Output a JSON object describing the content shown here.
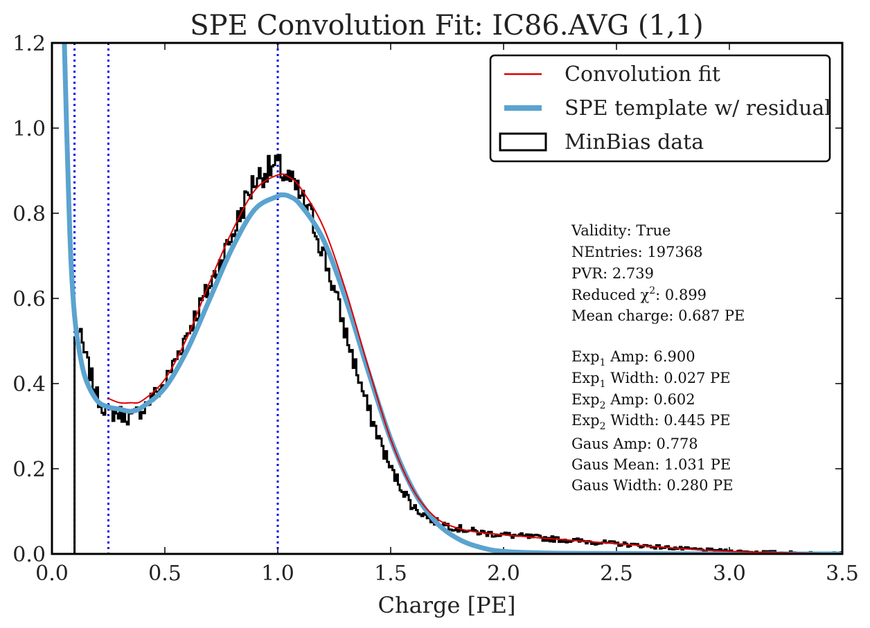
{
  "chart_data": {
    "type": "line",
    "title": "SPE Convolution Fit: IC86.AVG (1,1)",
    "xlabel": "Charge [PE]",
    "ylabel": "",
    "xlim": [
      0.0,
      3.5
    ],
    "ylim": [
      0.0,
      1.2
    ],
    "xticks": [
      0.0,
      0.5,
      1.0,
      1.5,
      2.0,
      2.5,
      3.0,
      3.5
    ],
    "xtick_labels": [
      "0.0",
      "0.5",
      "1.0",
      "1.5",
      "2.0",
      "2.5",
      "3.0",
      "3.5"
    ],
    "yticks": [
      0.0,
      0.2,
      0.4,
      0.6,
      0.8,
      1.0,
      1.2
    ],
    "ytick_labels": [
      "0.0",
      "0.2",
      "0.4",
      "0.6",
      "0.8",
      "1.0",
      "1.2"
    ],
    "vlines": [
      0.1,
      0.25,
      1.0
    ],
    "legend_position": "top-right",
    "series": [
      {
        "name": "MinBias data",
        "kind": "histogram",
        "color": "#000000",
        "x": [
          0.1,
          0.12,
          0.15,
          0.2,
          0.25,
          0.3,
          0.35,
          0.4,
          0.5,
          0.6,
          0.7,
          0.8,
          0.85,
          0.9,
          0.95,
          1.0,
          1.05,
          1.1,
          1.15,
          1.2,
          1.25,
          1.3,
          1.4,
          1.5,
          1.6,
          1.7,
          1.8,
          1.9,
          2.0,
          2.2,
          2.4,
          2.6,
          2.8,
          3.0,
          3.2,
          3.5
        ],
        "y": [
          0.5,
          0.52,
          0.46,
          0.37,
          0.33,
          0.33,
          0.32,
          0.34,
          0.4,
          0.52,
          0.63,
          0.75,
          0.82,
          0.88,
          0.9,
          0.91,
          0.88,
          0.84,
          0.79,
          0.71,
          0.62,
          0.52,
          0.34,
          0.2,
          0.11,
          0.075,
          0.06,
          0.05,
          0.045,
          0.036,
          0.028,
          0.02,
          0.012,
          0.006,
          0.003,
          0.0
        ]
      },
      {
        "name": "Convolution fit",
        "kind": "line",
        "color": "#dd0000",
        "x": [
          0.25,
          0.3,
          0.35,
          0.4,
          0.5,
          0.6,
          0.7,
          0.8,
          0.9,
          1.0,
          1.05,
          1.1,
          1.2,
          1.3,
          1.4,
          1.5,
          1.6,
          1.7,
          1.8,
          1.9,
          2.0,
          2.2,
          2.4,
          2.6,
          2.8,
          3.0,
          3.2,
          3.5
        ],
        "y": [
          0.365,
          0.355,
          0.355,
          0.36,
          0.41,
          0.51,
          0.64,
          0.76,
          0.855,
          0.89,
          0.885,
          0.86,
          0.77,
          0.62,
          0.44,
          0.27,
          0.15,
          0.085,
          0.06,
          0.05,
          0.045,
          0.036,
          0.028,
          0.02,
          0.012,
          0.006,
          0.003,
          0.0
        ]
      },
      {
        "name": "SPE template w/ residual",
        "kind": "line",
        "color": "#5ba3d0",
        "x": [
          0.055,
          0.065,
          0.075,
          0.085,
          0.1,
          0.12,
          0.15,
          0.2,
          0.25,
          0.3,
          0.35,
          0.4,
          0.5,
          0.6,
          0.7,
          0.8,
          0.9,
          1.0,
          1.02,
          1.05,
          1.1,
          1.2,
          1.3,
          1.4,
          1.5,
          1.6,
          1.7,
          1.8,
          1.9,
          2.0,
          2.2,
          2.5,
          3.0,
          3.5
        ],
        "y": [
          1.2,
          1.0,
          0.82,
          0.68,
          0.56,
          0.48,
          0.41,
          0.36,
          0.345,
          0.34,
          0.335,
          0.345,
          0.39,
          0.48,
          0.6,
          0.72,
          0.81,
          0.84,
          0.843,
          0.84,
          0.82,
          0.74,
          0.6,
          0.43,
          0.27,
          0.15,
          0.075,
          0.035,
          0.015,
          0.006,
          0.002,
          0.001,
          0.0,
          0.0
        ]
      }
    ],
    "stats": [
      {
        "text": "Validity: True"
      },
      {
        "text": "NEntries: 197368"
      },
      {
        "text": "PVR: 2.739"
      },
      {
        "pre": "Reduced χ",
        "sup": "2",
        "post": ": 0.899"
      },
      {
        "text": "Mean charge: 0.687 PE"
      },
      {
        "pre": "Exp",
        "sub": "1",
        "post": " Amp: 6.900"
      },
      {
        "pre": "Exp",
        "sub": "1",
        "post": " Width: 0.027 PE"
      },
      {
        "pre": "Exp",
        "sub": "2",
        "post": " Amp: 0.602"
      },
      {
        "pre": "Exp",
        "sub": "2",
        "post": " Width: 0.445 PE"
      },
      {
        "text": "Gaus Amp: 0.778"
      },
      {
        "text": "Gaus Mean: 1.031 PE"
      },
      {
        "text": "Gaus Width: 0.280 PE"
      }
    ]
  }
}
